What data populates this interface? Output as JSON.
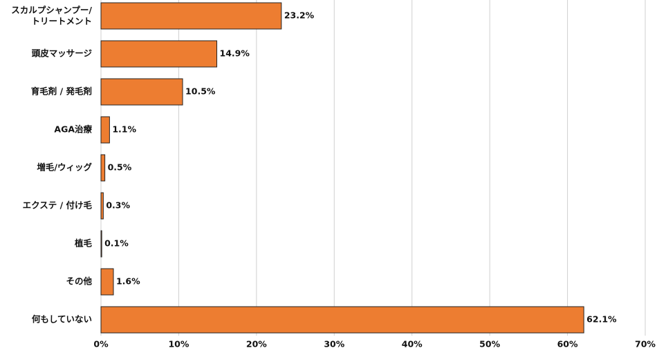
{
  "chart_data": {
    "type": "hbar",
    "categories": [
      "スカルプシャンプー/\nトリートメント",
      "頭皮マッサージ",
      "育毛剤 / 発毛剤",
      "AGA治療",
      "増毛/ウィッグ",
      "エクステ / 付け毛",
      "植毛",
      "その他",
      "何もしていない"
    ],
    "values": [
      23.2,
      14.9,
      10.5,
      1.1,
      0.5,
      0.3,
      0.1,
      1.6,
      62.1
    ],
    "value_labels": [
      "23.2%",
      "14.9%",
      "10.5%",
      "1.1%",
      "0.5%",
      "0.3%",
      "0.1%",
      "1.6%",
      "62.1%"
    ],
    "color": "#ed7d31",
    "xlim": [
      0,
      70
    ],
    "xticks": [
      {
        "value": 0,
        "label": "0%"
      },
      {
        "value": 10,
        "label": "10%"
      },
      {
        "value": 20,
        "label": "20%"
      },
      {
        "value": 30,
        "label": "30%"
      },
      {
        "value": 40,
        "label": "40%"
      },
      {
        "value": 50,
        "label": "50%"
      },
      {
        "value": 60,
        "label": "60%"
      },
      {
        "value": 70,
        "label": "70%"
      }
    ],
    "grid": true
  }
}
